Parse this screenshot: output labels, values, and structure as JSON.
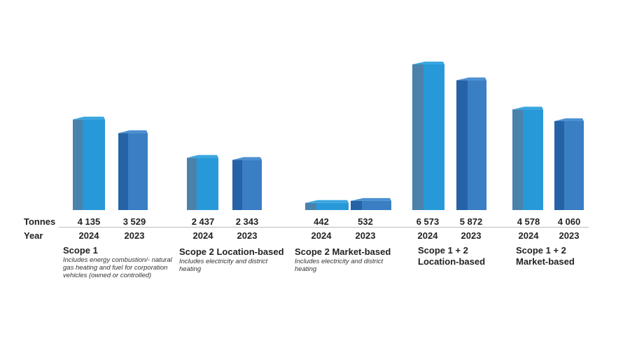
{
  "row_labels": {
    "tonnes": "Tonnes",
    "year": "Year"
  },
  "colors": {
    "year_2024_front": "#2799d8",
    "year_2024_side": "#4a82ac",
    "year_2024_top": "#3aa6e0",
    "year_2023_front": "#3a7ec4",
    "year_2023_side": "#2563a6",
    "year_2023_top": "#4d90d2"
  },
  "chart_data": {
    "type": "bar",
    "title": "",
    "xlabel": "",
    "ylabel": "Tonnes",
    "years": [
      "2024",
      "2023"
    ],
    "ylim": [
      0,
      6573
    ],
    "groups": [
      {
        "title": "Scope 1",
        "note": "Includes energy combustion/- natural gas heating and fuel for corporation vehicles (owned or controlled)",
        "bars": [
          {
            "year": "2024",
            "value": 4135,
            "label": "4 135"
          },
          {
            "year": "2023",
            "value": 3529,
            "label": "3 529"
          }
        ]
      },
      {
        "title": "Scope 2 Location-based",
        "note": "Includes electricity and district heating",
        "bars": [
          {
            "year": "2024",
            "value": 2437,
            "label": "2 437"
          },
          {
            "year": "2023",
            "value": 2343,
            "label": "2 343"
          }
        ]
      },
      {
        "title": "Scope 2 Market-based",
        "note": "Includes electricity and district heating",
        "bars": [
          {
            "year": "2024",
            "value": 442,
            "label": "442"
          },
          {
            "year": "2023",
            "value": 532,
            "label": "532"
          }
        ]
      },
      {
        "title": "Scope 1 + 2 Location-based",
        "note": "",
        "bars": [
          {
            "year": "2024",
            "value": 6573,
            "label": "6 573"
          },
          {
            "year": "2023",
            "value": 5872,
            "label": "5 872"
          }
        ]
      },
      {
        "title": "Scope 1 + 2 Market-based",
        "note": "",
        "bars": [
          {
            "year": "2024",
            "value": 4578,
            "label": "4 578"
          },
          {
            "year": "2023",
            "value": 4060,
            "label": "4 060"
          }
        ]
      }
    ]
  }
}
